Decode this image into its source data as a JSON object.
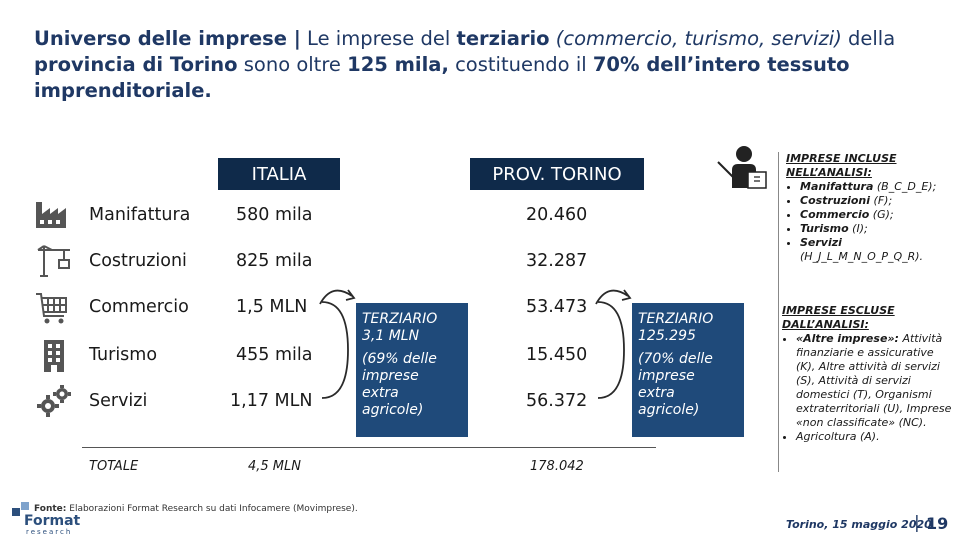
{
  "title": {
    "p1": "Universo delle imprese |",
    "p2": " Le imprese del ",
    "p3": "terziario",
    "p4": " (commercio, turismo, servizi)",
    "p5": " della",
    "p6": "provincia di Torino",
    "p7": " sono oltre ",
    "p8": "125 mila,",
    "p9": " costituendo il ",
    "p10": "70% dell’intero tessuto",
    "p11": "imprenditoriale."
  },
  "headers": {
    "italia": "ITALIA",
    "torino": "PROV. TORINO"
  },
  "rows": [
    {
      "label": "Manifattura",
      "italia": "580 mila",
      "torino": "20.460",
      "icon": "factory-icon"
    },
    {
      "label": "Costruzioni",
      "italia": "825 mila",
      "torino": "32.287",
      "icon": "crane-icon"
    },
    {
      "label": "Commercio",
      "italia": "1,5 MLN",
      "torino": "53.473",
      "icon": "cart-icon"
    },
    {
      "label": "Turismo",
      "italia": "455 mila",
      "torino": "15.450",
      "icon": "building-icon"
    },
    {
      "label": "Servizi",
      "italia": "1,17 MLN",
      "torino": "56.372",
      "icon": "gears-icon"
    }
  ],
  "totals": {
    "label": "TOTALE",
    "italia": "4,5 MLN",
    "torino": "178.042"
  },
  "terziario_italia": {
    "l1": "TERZIARIO",
    "l2": "3,1 MLN",
    "l3": "(69% delle",
    "l4": "imprese",
    "l5": "extra",
    "l6": "agricole)"
  },
  "terziario_torino": {
    "l1": "TERZIARIO",
    "l2": "125.295",
    "l3": "(70% delle",
    "l4": "imprese",
    "l5": "extra",
    "l6": "agricole)"
  },
  "incluse": {
    "heading": "IMPRESE INCLUSE NELL’ANALISI:",
    "items": [
      {
        "b": "Manifattura",
        "r": " (B_C_D_E);"
      },
      {
        "b": "Costruzioni",
        "r": " (F);"
      },
      {
        "b": "Commercio",
        "r": " (G);"
      },
      {
        "b": "Turismo",
        "r": " (I);"
      },
      {
        "b": "Servizi",
        "r": " (H_J_L_M_N_O_P_Q_R)."
      }
    ]
  },
  "escluse": {
    "heading": "IMPRESE ESCLUSE DALL’ANALISI:",
    "items": [
      {
        "b": "«Altre imprese»:",
        "r": " Attività finanziarie e assicurative (K), Altre attività di servizi (S), Attività di servizi domestici (T), Organismi extraterritoriali (U), Imprese «non classificate» (NC)."
      },
      {
        "b": "",
        "r": "Agricoltura (A)."
      }
    ]
  },
  "footer": {
    "fonte_label": "Fonte:",
    "fonte_text": " Elaborazioni Format Research su dati Infocamere (Movimprese).",
    "logo_top": "Format",
    "logo_bottom": "research",
    "date": "Torino, 15 maggio 2020",
    "sep": "|",
    "page": "19"
  }
}
